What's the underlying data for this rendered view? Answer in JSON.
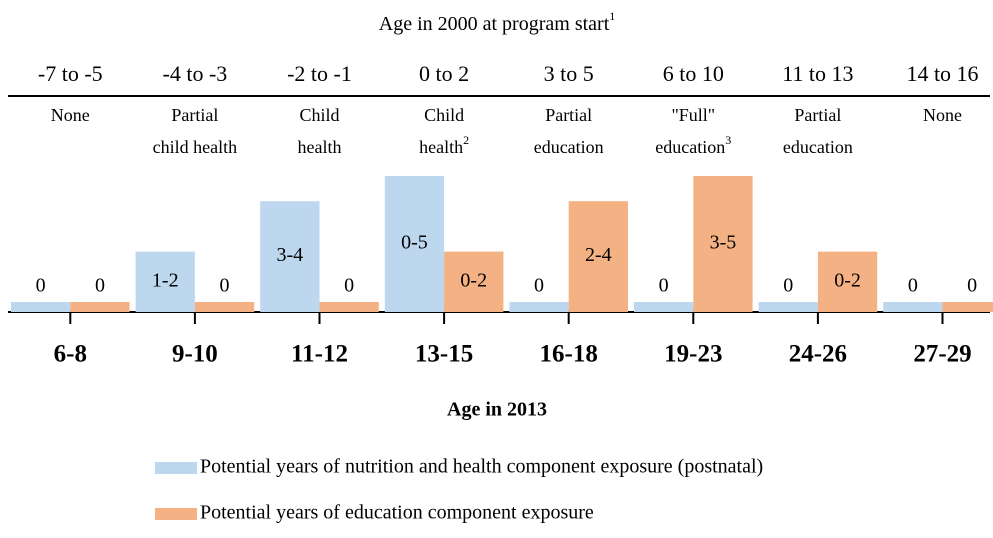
{
  "chart_data": {
    "type": "bar",
    "top_title": {
      "text": "Age in 2000 at program start",
      "note": "1"
    },
    "top_categories": [
      "-7 to -5",
      "-4 to -3",
      "-2 to -1",
      "0 to 2",
      "3 to 5",
      "6 to 10",
      "11 to 13",
      "14 to 16"
    ],
    "exposure": [
      {
        "lines": [
          "None"
        ]
      },
      {
        "lines": [
          "Partial",
          "child health"
        ]
      },
      {
        "lines": [
          "Child",
          "health"
        ]
      },
      {
        "lines": [
          "Child",
          "health"
        ],
        "note": "2"
      },
      {
        "lines": [
          "Partial",
          "education"
        ]
      },
      {
        "lines": [
          "\"Full\"",
          "education"
        ],
        "note": "3"
      },
      {
        "lines": [
          "Partial",
          "education"
        ]
      },
      {
        "lines": [
          "None"
        ]
      }
    ],
    "categories": [
      "6-8",
      "9-10",
      "11-12",
      "13-15",
      "16-18",
      "19-23",
      "24-26",
      "27-29"
    ],
    "x_label": "Age in 2013",
    "series": [
      {
        "name": "Potential years of nutrition and health component exposure (postnatal)",
        "color": "#bdd7ee",
        "values": [
          0,
          2,
          4,
          5,
          0,
          0,
          0,
          0
        ],
        "value_labels": [
          "0",
          "1-2",
          "3-4",
          "0-5",
          "0",
          "0",
          "0",
          "0"
        ]
      },
      {
        "name": "Potential years of education component exposure",
        "color": "#f4b183",
        "values": [
          0,
          0,
          0,
          2,
          4,
          5,
          2,
          0
        ],
        "value_labels": [
          "0",
          "0",
          "0",
          "0-2",
          "2-4",
          "3-5",
          "0-2",
          "0"
        ]
      }
    ]
  }
}
